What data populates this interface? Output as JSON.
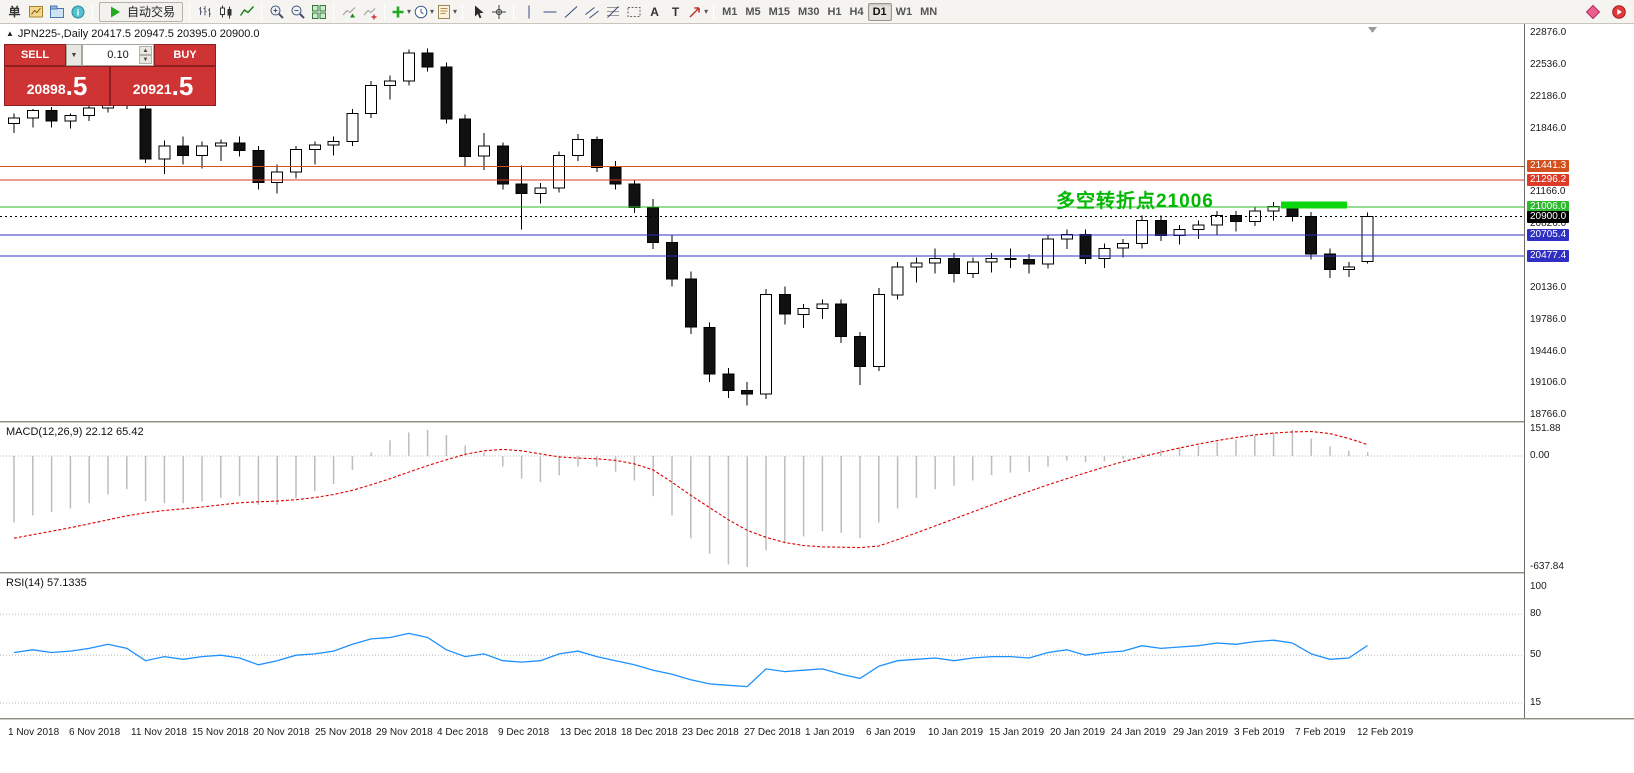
{
  "toolbar": {
    "caret_glyph": "▾",
    "items": [
      {
        "name": "new-order-icon",
        "glyph": "单"
      },
      {
        "name": "charts-icon",
        "svg": "charts"
      },
      {
        "name": "profiles-icon",
        "svg": "profiles"
      },
      {
        "name": "data-window-icon",
        "svg": "info"
      },
      {
        "sep": true
      },
      {
        "name": "auto-trading-button",
        "button": true,
        "label": "自动交易",
        "svg": "play"
      },
      {
        "sep": true
      },
      {
        "name": "bar-chart-icon",
        "svg": "bars"
      },
      {
        "name": "candlestick-chart-icon",
        "svg": "candles"
      },
      {
        "name": "line-chart-icon",
        "svg": "line"
      },
      {
        "sep": true
      },
      {
        "name": "zoom-in-icon",
        "svg": "zoomin"
      },
      {
        "name": "zoom-out-icon",
        "svg": "zoomout"
      },
      {
        "name": "tile-windows-icon",
        "svg": "tile"
      },
      {
        "sep": true
      },
      {
        "name": "auto-scroll-icon",
        "svg": "autoscroll"
      },
      {
        "name": "chart-shift-icon",
        "svg": "shift"
      },
      {
        "sep": true
      },
      {
        "name": "indicators-icon",
        "svg": "plus",
        "caret": true
      },
      {
        "name": "periods-icon",
        "svg": "clock",
        "caret": true
      },
      {
        "name": "templates-icon",
        "svg": "template",
        "caret": true
      },
      {
        "sep": true
      },
      {
        "name": "cursor-icon",
        "svg": "cursor"
      },
      {
        "name": "crosshair-icon",
        "svg": "crosshair"
      },
      {
        "sep": true
      },
      {
        "name": "vertical-line-icon",
        "svg": "vline"
      },
      {
        "name": "horizontal-line-icon",
        "svg": "hline"
      },
      {
        "name": "trendline-icon",
        "svg": "trend"
      },
      {
        "name": "channel-icon",
        "svg": "channel"
      },
      {
        "name": "fibonacci-icon",
        "svg": "fibo"
      },
      {
        "name": "shapes-icon",
        "svg": "dotrect"
      },
      {
        "name": "text-icon",
        "glyph": "A"
      },
      {
        "name": "label-icon",
        "glyph": "T"
      },
      {
        "name": "arrows-icon",
        "svg": "arrowtool",
        "caret": true
      },
      {
        "sep": true
      }
    ],
    "timeframes": [
      "M1",
      "M5",
      "M15",
      "M30",
      "H1",
      "H4",
      "D1",
      "W1",
      "MN"
    ],
    "active_timeframe": "D1",
    "right_items": [
      {
        "name": "community-icon",
        "svg": "reddiamond"
      },
      {
        "name": "live-update-icon",
        "svg": "redplay"
      }
    ]
  },
  "trade_panel": {
    "sell_label": "SELL",
    "buy_label": "BUY",
    "lot": "0.10",
    "caret_glyph": "▼",
    "spin_up": "▲",
    "spin_down": "▼",
    "sell_price": "20898.5",
    "buy_price": "20921.5",
    "sell_price_main": "20898",
    "sell_price_big": ".5",
    "buy_price_main": "20921",
    "buy_price_big": ".5"
  },
  "chart": {
    "collapse_icon": "▲",
    "title": "JPN225-,Daily 20417.5 20947.5 20395.0 20900.0",
    "symbol": "JPN225-",
    "period": "Daily",
    "ohlc": {
      "open": "20417.5",
      "high": "20947.5",
      "low": "20395.0",
      "close": "20900.0"
    },
    "annotation": {
      "text": "多空转折点21006",
      "color": "#00b800",
      "index": 55.4,
      "price": 21069
    },
    "turning_bar": {
      "start_index": 67.4,
      "end_index": 70.9,
      "price_top": 21065,
      "price_bottom": 20990,
      "color": "#0cd60c"
    },
    "levels": [
      {
        "name": "resistance-line-1",
        "label": "21441.3",
        "price": 21441.3,
        "color": "#d2511e"
      },
      {
        "name": "resistance-line-2",
        "label": "21296.2",
        "price": 21296.2,
        "color": "#dd3b28"
      },
      {
        "name": "turning-point-line",
        "label": "21006.0",
        "price": 21006.0,
        "color": "#2eb82e"
      },
      {
        "name": "current-price-line",
        "label": "20900.0",
        "price": 20900.0,
        "color": "#000000",
        "style": "dashed"
      },
      {
        "name": "support-line-1",
        "label": "20705.4",
        "price": 20705.4,
        "color": "#2f2fc4"
      },
      {
        "name": "support-line-2",
        "label": "20477.4",
        "price": 20477.4,
        "color": "#2f2fc4"
      }
    ],
    "price_ticks": [
      "22876.0",
      "22536.0",
      "22186.0",
      "21846.0",
      "21166.0",
      "20826.0",
      "20136.0",
      "19786.0",
      "19446.0",
      "19106.0",
      "18766.0"
    ]
  },
  "chart_data": [
    {
      "type": "candlestick",
      "title": "JPN225- Daily",
      "ylim": [
        18766.0,
        22876.0
      ],
      "x_axis_labels": [
        "1 Nov 2018",
        "6 Nov 2018",
        "11 Nov 2018",
        "15 Nov 2018",
        "20 Nov 2018",
        "25 Nov 2018",
        "29 Nov 2018",
        "4 Dec 2018",
        "9 Dec 2018",
        "13 Dec 2018",
        "18 Dec 2018",
        "23 Dec 2018",
        "27 Dec 2018",
        "1 Jan 2019",
        "6 Jan 2019",
        "10 Jan 2019",
        "15 Jan 2019",
        "20 Jan 2019",
        "24 Jan 2019",
        "29 Jan 2019",
        "3 Feb 2019",
        "7 Feb 2019",
        "12 Feb 2019"
      ],
      "ohlc": [
        [
          21900,
          22010,
          21800,
          21960
        ],
        [
          21960,
          22060,
          21860,
          22040
        ],
        [
          22040,
          22080,
          21860,
          21930
        ],
        [
          21930,
          22010,
          21850,
          21990
        ],
        [
          21990,
          22110,
          21930,
          22070
        ],
        [
          22070,
          22390,
          22020,
          22250
        ],
        [
          22250,
          22290,
          22060,
          22120
        ],
        [
          22060,
          22110,
          21480,
          21520
        ],
        [
          21520,
          21720,
          21360,
          21660
        ],
        [
          21660,
          21760,
          21460,
          21560
        ],
        [
          21560,
          21710,
          21420,
          21660
        ],
        [
          21660,
          21730,
          21500,
          21690
        ],
        [
          21690,
          21760,
          21550,
          21610
        ],
        [
          21610,
          21660,
          21190,
          21270
        ],
        [
          21270,
          21460,
          21150,
          21380
        ],
        [
          21380,
          21660,
          21310,
          21620
        ],
        [
          21620,
          21710,
          21460,
          21670
        ],
        [
          21670,
          21760,
          21560,
          21710
        ],
        [
          21710,
          22060,
          21660,
          22010
        ],
        [
          22010,
          22360,
          21960,
          22310
        ],
        [
          22310,
          22420,
          22160,
          22360
        ],
        [
          22360,
          22700,
          22310,
          22660
        ],
        [
          22660,
          22710,
          22460,
          22510
        ],
        [
          22510,
          22560,
          21900,
          21950
        ],
        [
          21950,
          22000,
          21440,
          21550
        ],
        [
          21550,
          21800,
          21400,
          21660
        ],
        [
          21660,
          21700,
          21190,
          21250
        ],
        [
          21250,
          21450,
          20760,
          21150
        ],
        [
          21150,
          21260,
          21040,
          21210
        ],
        [
          21210,
          21600,
          21160,
          21560
        ],
        [
          21560,
          21790,
          21500,
          21730
        ],
        [
          21730,
          21760,
          21380,
          21430
        ],
        [
          21430,
          21500,
          21190,
          21250
        ],
        [
          21250,
          21300,
          20940,
          21000
        ],
        [
          21000,
          21090,
          20550,
          20620
        ],
        [
          20620,
          20700,
          20150,
          20230
        ],
        [
          20230,
          20310,
          19640,
          19710
        ],
        [
          19710,
          19760,
          19120,
          19210
        ],
        [
          19210,
          19270,
          18950,
          19030
        ],
        [
          19030,
          19120,
          18870,
          18990
        ],
        [
          18990,
          20120,
          18940,
          20060
        ],
        [
          20060,
          20150,
          19740,
          19850
        ],
        [
          19850,
          19960,
          19700,
          19910
        ],
        [
          19910,
          20010,
          19800,
          19960
        ],
        [
          19960,
          20010,
          19540,
          19610
        ],
        [
          19610,
          19660,
          19090,
          19290
        ],
        [
          19290,
          20130,
          19240,
          20060
        ],
        [
          20060,
          20410,
          20010,
          20360
        ],
        [
          20360,
          20460,
          20190,
          20400
        ],
        [
          20400,
          20560,
          20290,
          20450
        ],
        [
          20450,
          20510,
          20190,
          20290
        ],
        [
          20290,
          20460,
          20240,
          20410
        ],
        [
          20410,
          20510,
          20300,
          20450
        ],
        [
          20450,
          20560,
          20350,
          20440
        ],
        [
          20440,
          20500,
          20290,
          20390
        ],
        [
          20390,
          20710,
          20340,
          20660
        ],
        [
          20660,
          20760,
          20550,
          20710
        ],
        [
          20710,
          20760,
          20390,
          20450
        ],
        [
          20450,
          20610,
          20350,
          20560
        ],
        [
          20560,
          20660,
          20460,
          20610
        ],
        [
          20610,
          20910,
          20560,
          20860
        ],
        [
          20860,
          20910,
          20640,
          20700
        ],
        [
          20700,
          20810,
          20600,
          20760
        ],
        [
          20760,
          20860,
          20660,
          20810
        ],
        [
          20810,
          20960,
          20710,
          20910
        ],
        [
          20910,
          20960,
          20740,
          20850
        ],
        [
          20850,
          21010,
          20800,
          20960
        ],
        [
          20960,
          21060,
          20860,
          21010
        ],
        [
          21010,
          21060,
          20850,
          20900
        ],
        [
          20900,
          20950,
          20440,
          20500
        ],
        [
          20500,
          20560,
          20240,
          20330
        ],
        [
          20330,
          20410,
          20250,
          20360
        ],
        [
          20417.5,
          20947.5,
          20395.0,
          20900.0
        ]
      ]
    },
    {
      "type": "bar",
      "name": "MACD histogram with signal line",
      "label": "MACD(12,26,9) 22.12 65.42",
      "current_macd": "22.12",
      "current_signal": "65.42",
      "axis_ticks": [
        {
          "label": "151.88",
          "value": 151.88
        },
        {
          "label": "0.00",
          "value": 0
        },
        {
          "label": "-637.84",
          "value": -637.84
        }
      ],
      "values": [
        -380,
        -340,
        -320,
        -300,
        -270,
        -220,
        -190,
        -260,
        -270,
        -270,
        -260,
        -240,
        -230,
        -280,
        -280,
        -240,
        -200,
        -160,
        -80,
        20,
        90,
        135,
        150,
        120,
        60,
        20,
        -60,
        -130,
        -150,
        -110,
        -60,
        -60,
        -90,
        -140,
        -230,
        -340,
        -470,
        -560,
        -620,
        -635,
        -540,
        -500,
        -460,
        -430,
        -440,
        -470,
        -380,
        -300,
        -240,
        -190,
        -170,
        -140,
        -110,
        -95,
        -90,
        -60,
        -25,
        -35,
        -30,
        -15,
        15,
        35,
        50,
        60,
        80,
        95,
        115,
        135,
        150,
        100,
        55,
        30,
        22.12
      ],
      "signal": [
        -470,
        -450,
        -430,
        -410,
        -388,
        -365,
        -342,
        -325,
        -312,
        -302,
        -292,
        -280,
        -268,
        -262,
        -258,
        -250,
        -238,
        -220,
        -196,
        -165,
        -130,
        -92,
        -55,
        -22,
        10,
        30,
        38,
        30,
        12,
        -5,
        -12,
        -16,
        -25,
        -45,
        -80,
        -150,
        -225,
        -295,
        -365,
        -425,
        -465,
        -495,
        -512,
        -520,
        -522,
        -524,
        -515,
        -478,
        -440,
        -400,
        -360,
        -320,
        -280,
        -240,
        -202,
        -165,
        -130,
        -96,
        -63,
        -32,
        -4,
        22,
        46,
        68,
        88,
        106,
        120,
        131,
        138,
        140,
        128,
        100,
        65.42
      ]
    },
    {
      "type": "line",
      "name": "RSI",
      "label": "RSI(14) 57.1335",
      "current_value": "57.1335",
      "levels": [
        80,
        50,
        15
      ],
      "axis_ticks": [
        {
          "label": "100",
          "value": 100
        },
        {
          "label": "80",
          "value": 80
        },
        {
          "label": "50",
          "value": 50
        },
        {
          "label": "15",
          "value": 15
        }
      ],
      "values": [
        52,
        54,
        52,
        53,
        55,
        58,
        55,
        46,
        49,
        47,
        49,
        50,
        48,
        43,
        46,
        50,
        51,
        53,
        58,
        62,
        63,
        66,
        63,
        54,
        49,
        51,
        46,
        45,
        46,
        51,
        53,
        49,
        46,
        43,
        39,
        36,
        32,
        29,
        28,
        27,
        40,
        38,
        39,
        40,
        36,
        33,
        42,
        46,
        47,
        48,
        46,
        48,
        49,
        49,
        48,
        52,
        54,
        50,
        52,
        53,
        57,
        55,
        56,
        57,
        59,
        58,
        60,
        61,
        59,
        51,
        47,
        48,
        57.13
      ]
    }
  ]
}
